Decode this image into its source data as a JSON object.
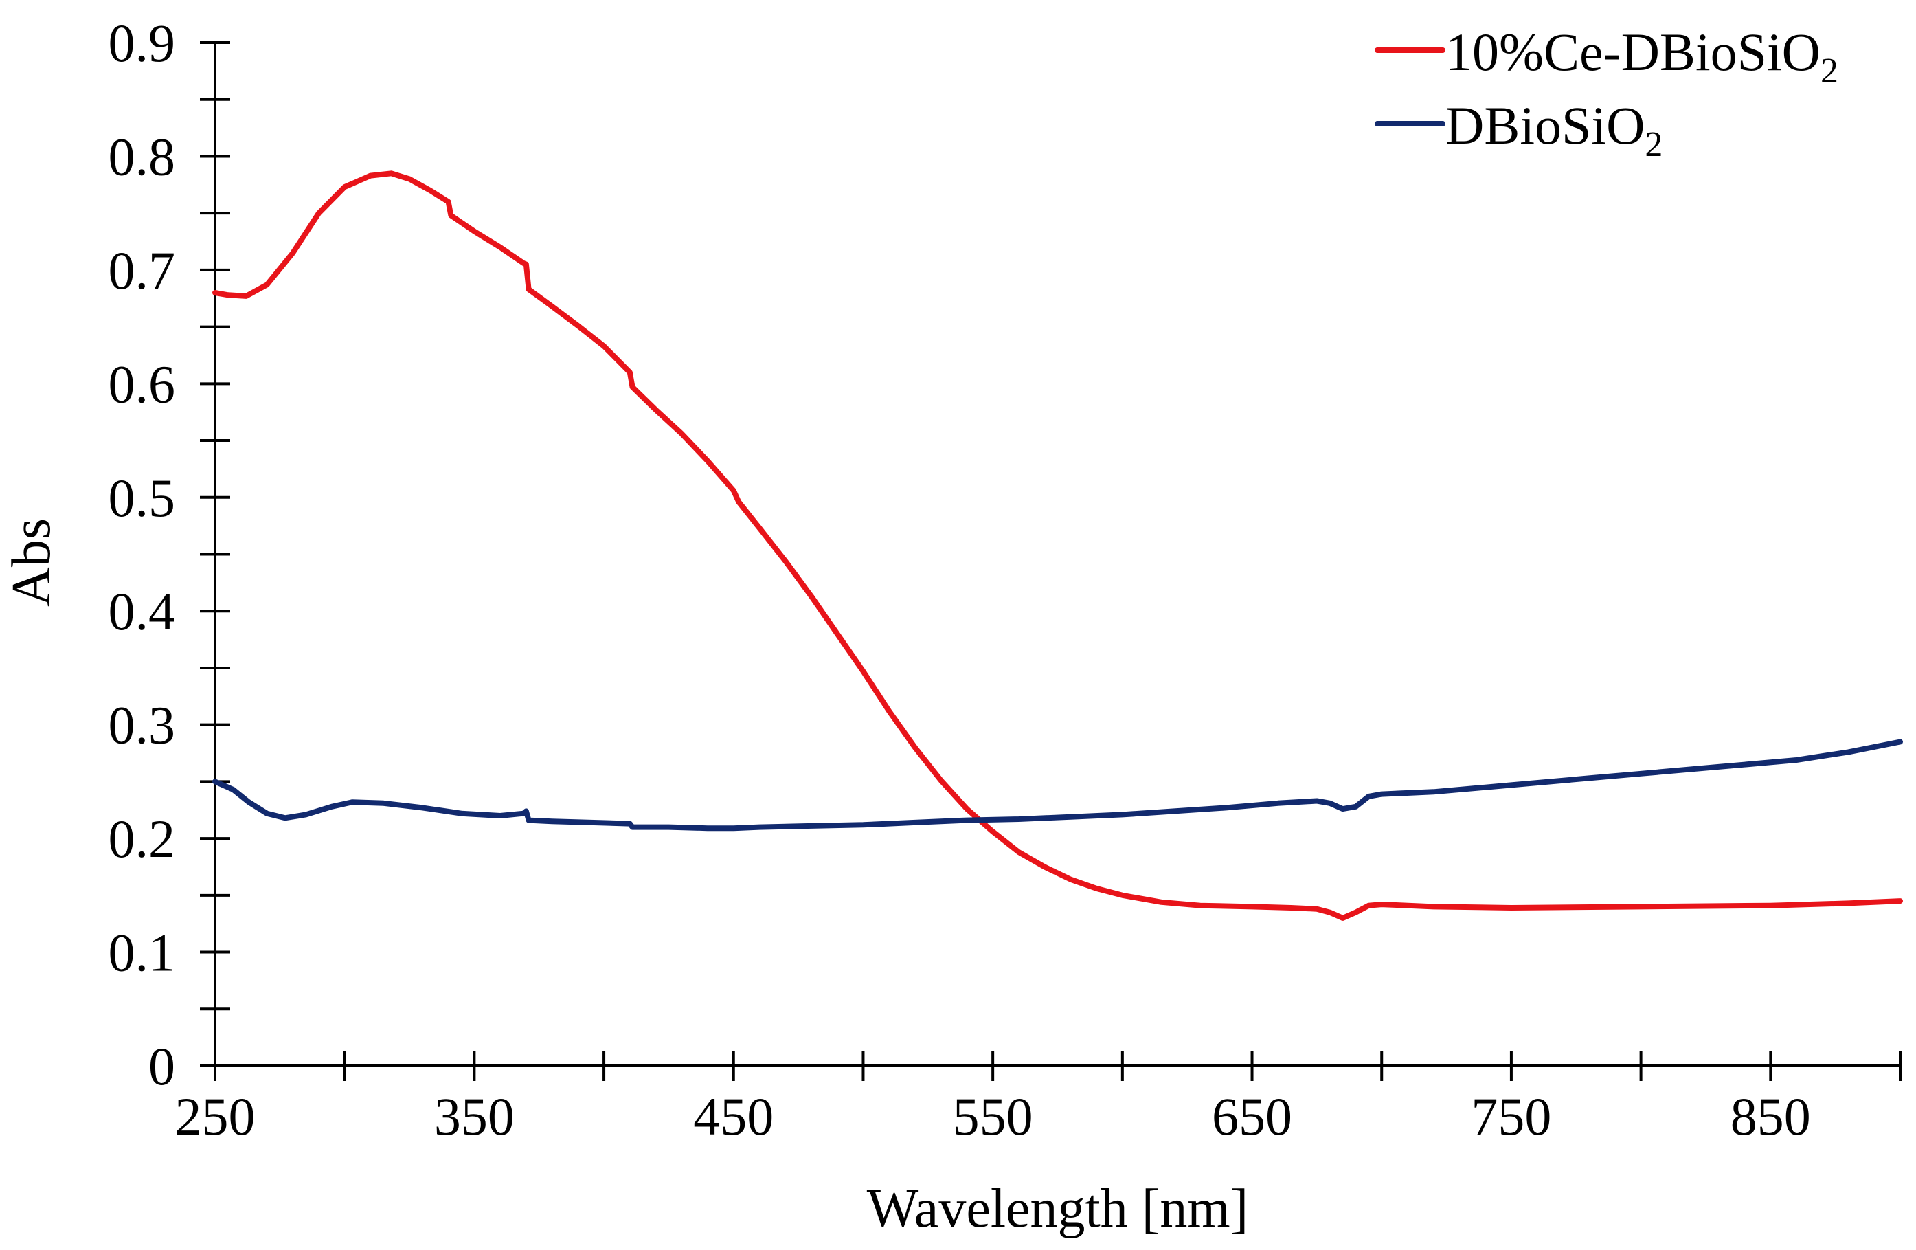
{
  "chart_data": {
    "type": "line",
    "title": "",
    "xlabel": "Wavelength [nm]",
    "ylabel": "Abs",
    "xlim": [
      250,
      900
    ],
    "ylim": [
      0,
      0.9
    ],
    "x_ticks": [
      250,
      350,
      450,
      550,
      650,
      750,
      850
    ],
    "x_tick_labels": [
      "250",
      "350",
      "450",
      "550",
      "650",
      "750",
      "850"
    ],
    "x_minor_step": 50,
    "y_ticks": [
      0,
      0.1,
      0.2,
      0.3,
      0.4,
      0.5,
      0.6,
      0.7,
      0.8,
      0.9
    ],
    "y_tick_labels": [
      "0",
      "0.1",
      "0.2",
      "0.3",
      "0.4",
      "0.5",
      "0.6",
      "0.7",
      "0.8",
      "0.9"
    ],
    "y_minor_step": 0.05,
    "grid": false,
    "legend_position": "top-right",
    "series": [
      {
        "name": "10%Ce-DBioSiO2",
        "legend_main": "10%Ce-DBioSiO",
        "legend_sub": "2",
        "color": "#e8141a",
        "points": [
          [
            250,
            0.68
          ],
          [
            255,
            0.678
          ],
          [
            262,
            0.677
          ],
          [
            270,
            0.687
          ],
          [
            280,
            0.715
          ],
          [
            290,
            0.75
          ],
          [
            300,
            0.773
          ],
          [
            310,
            0.783
          ],
          [
            318,
            0.785
          ],
          [
            325,
            0.78
          ],
          [
            333,
            0.77
          ],
          [
            340,
            0.76
          ],
          [
            341,
            0.748
          ],
          [
            350,
            0.734
          ],
          [
            360,
            0.72
          ],
          [
            369,
            0.706
          ],
          [
            370,
            0.705
          ],
          [
            371,
            0.683
          ],
          [
            380,
            0.668
          ],
          [
            390,
            0.651
          ],
          [
            400,
            0.633
          ],
          [
            410,
            0.61
          ],
          [
            411,
            0.597
          ],
          [
            420,
            0.577
          ],
          [
            430,
            0.556
          ],
          [
            440,
            0.532
          ],
          [
            450,
            0.506
          ],
          [
            452,
            0.496
          ],
          [
            460,
            0.473
          ],
          [
            470,
            0.444
          ],
          [
            480,
            0.413
          ],
          [
            490,
            0.38
          ],
          [
            500,
            0.347
          ],
          [
            510,
            0.312
          ],
          [
            520,
            0.28
          ],
          [
            530,
            0.251
          ],
          [
            540,
            0.226
          ],
          [
            550,
            0.206
          ],
          [
            560,
            0.188
          ],
          [
            570,
            0.175
          ],
          [
            580,
            0.164
          ],
          [
            590,
            0.156
          ],
          [
            600,
            0.15
          ],
          [
            615,
            0.144
          ],
          [
            630,
            0.141
          ],
          [
            650,
            0.14
          ],
          [
            665,
            0.139
          ],
          [
            675,
            0.138
          ],
          [
            680,
            0.135
          ],
          [
            685,
            0.13
          ],
          [
            690,
            0.135
          ],
          [
            695,
            0.141
          ],
          [
            700,
            0.142
          ],
          [
            720,
            0.14
          ],
          [
            750,
            0.139
          ],
          [
            800,
            0.14
          ],
          [
            850,
            0.141
          ],
          [
            880,
            0.143
          ],
          [
            900,
            0.145
          ]
        ]
      },
      {
        "name": "DBioSiO2",
        "legend_main": "DBioSiO",
        "legend_sub": "2",
        "color": "#122a6e",
        "points": [
          [
            250,
            0.25
          ],
          [
            257,
            0.243
          ],
          [
            263,
            0.232
          ],
          [
            270,
            0.222
          ],
          [
            277,
            0.218
          ],
          [
            285,
            0.221
          ],
          [
            295,
            0.228
          ],
          [
            303,
            0.232
          ],
          [
            315,
            0.231
          ],
          [
            330,
            0.227
          ],
          [
            345,
            0.222
          ],
          [
            360,
            0.22
          ],
          [
            369,
            0.222
          ],
          [
            370,
            0.224
          ],
          [
            371,
            0.216
          ],
          [
            380,
            0.215
          ],
          [
            395,
            0.214
          ],
          [
            410,
            0.213
          ],
          [
            411,
            0.21
          ],
          [
            425,
            0.21
          ],
          [
            440,
            0.209
          ],
          [
            450,
            0.209
          ],
          [
            460,
            0.21
          ],
          [
            480,
            0.211
          ],
          [
            500,
            0.212
          ],
          [
            520,
            0.214
          ],
          [
            540,
            0.216
          ],
          [
            560,
            0.217
          ],
          [
            580,
            0.219
          ],
          [
            600,
            0.221
          ],
          [
            620,
            0.224
          ],
          [
            640,
            0.227
          ],
          [
            660,
            0.231
          ],
          [
            675,
            0.233
          ],
          [
            680,
            0.231
          ],
          [
            685,
            0.226
          ],
          [
            690,
            0.228
          ],
          [
            695,
            0.237
          ],
          [
            700,
            0.239
          ],
          [
            720,
            0.241
          ],
          [
            750,
            0.247
          ],
          [
            780,
            0.253
          ],
          [
            800,
            0.257
          ],
          [
            830,
            0.263
          ],
          [
            860,
            0.269
          ],
          [
            880,
            0.276
          ],
          [
            900,
            0.285
          ]
        ]
      }
    ]
  }
}
